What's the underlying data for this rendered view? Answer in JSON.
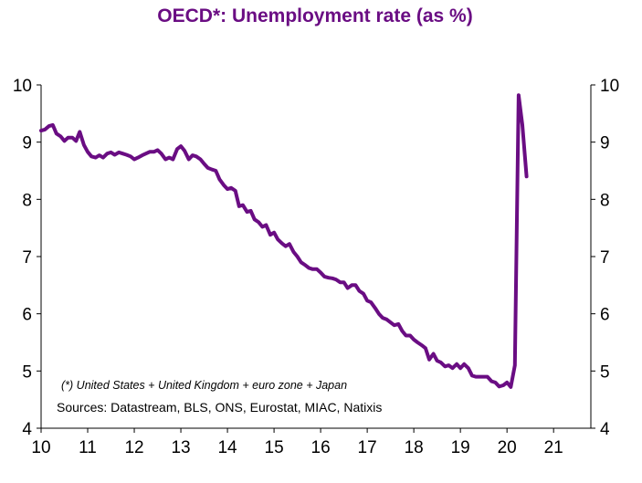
{
  "chart_data": {
    "type": "line",
    "title": "OECD*:  Unemployment rate (as %)",
    "xlabel": "",
    "ylabel": "",
    "xlim": [
      10,
      21.8
    ],
    "ylim": [
      4,
      10
    ],
    "x_ticks": [
      "10",
      "11",
      "12",
      "13",
      "14",
      "15",
      "16",
      "17",
      "18",
      "19",
      "20",
      "21"
    ],
    "y_ticks": [
      "4",
      "5",
      "6",
      "7",
      "8",
      "9",
      "10"
    ],
    "y_ticks_right": [
      "4",
      "5",
      "6",
      "7",
      "8",
      "9",
      "10"
    ],
    "grid": false,
    "legend": "none",
    "series_color": "#6a0d83",
    "series": [
      {
        "x": [
          10.0,
          10.08,
          10.17,
          10.25,
          10.33,
          10.42,
          10.5,
          10.58,
          10.67,
          10.75,
          10.83,
          10.92,
          11.0,
          11.08,
          11.17,
          11.25,
          11.33,
          11.42,
          11.5,
          11.58,
          11.67,
          11.75,
          11.83,
          11.92,
          12.0,
          12.08,
          12.17,
          12.25,
          12.33,
          12.42,
          12.5,
          12.58,
          12.67,
          12.75,
          12.83,
          12.92,
          13.0,
          13.08,
          13.17,
          13.25,
          13.33,
          13.42,
          13.5,
          13.58,
          13.67,
          13.75,
          13.83,
          13.92,
          14.0,
          14.08,
          14.17,
          14.25,
          14.33,
          14.42,
          14.5,
          14.58,
          14.67,
          14.75,
          14.83,
          14.92,
          15.0,
          15.08,
          15.17,
          15.25,
          15.33,
          15.42,
          15.5,
          15.58,
          15.67,
          15.75,
          15.83,
          15.92,
          16.0,
          16.08,
          16.17,
          16.25,
          16.33,
          16.42,
          16.5,
          16.58,
          16.67,
          16.75,
          16.83,
          16.92,
          17.0,
          17.08,
          17.17,
          17.25,
          17.33,
          17.42,
          17.5,
          17.58,
          17.67,
          17.75,
          17.83,
          17.92,
          18.0,
          18.08,
          18.17,
          18.25,
          18.33,
          18.42,
          18.5,
          18.58,
          18.67,
          18.75,
          18.83,
          18.92,
          19.0,
          19.08,
          19.17,
          19.25,
          19.33,
          19.42,
          19.5,
          19.58,
          19.67,
          19.75,
          19.83,
          19.92,
          20.0,
          20.08,
          20.17,
          20.25,
          20.33,
          20.42
        ],
        "y": [
          9.2,
          9.22,
          9.28,
          9.3,
          9.15,
          9.1,
          9.02,
          9.08,
          9.08,
          9.02,
          9.18,
          8.95,
          8.83,
          8.75,
          8.73,
          8.77,
          8.73,
          8.8,
          8.82,
          8.78,
          8.82,
          8.8,
          8.78,
          8.75,
          8.7,
          8.73,
          8.77,
          8.8,
          8.83,
          8.83,
          8.86,
          8.8,
          8.7,
          8.73,
          8.7,
          8.88,
          8.93,
          8.85,
          8.7,
          8.77,
          8.75,
          8.7,
          8.62,
          8.55,
          8.52,
          8.5,
          8.35,
          8.25,
          8.18,
          8.2,
          8.15,
          7.88,
          7.9,
          7.78,
          7.8,
          7.65,
          7.6,
          7.52,
          7.55,
          7.38,
          7.42,
          7.3,
          7.23,
          7.18,
          7.22,
          7.08,
          7.0,
          6.9,
          6.85,
          6.8,
          6.78,
          6.78,
          6.72,
          6.65,
          6.63,
          6.62,
          6.6,
          6.55,
          6.55,
          6.45,
          6.5,
          6.5,
          6.4,
          6.35,
          6.23,
          6.2,
          6.1,
          6.0,
          5.93,
          5.9,
          5.85,
          5.8,
          5.82,
          5.7,
          5.62,
          5.62,
          5.55,
          5.5,
          5.45,
          5.4,
          5.2,
          5.3,
          5.18,
          5.15,
          5.08,
          5.1,
          5.05,
          5.12,
          5.05,
          5.12,
          5.05,
          4.92,
          4.9,
          4.9,
          4.9,
          4.9,
          4.82,
          4.8,
          4.73,
          4.75,
          4.8,
          4.72,
          5.1,
          9.82,
          9.3,
          8.4
        ]
      }
    ],
    "annotations": [
      "(*) United States + United Kingdom + euro zone + Japan",
      "Sources:  Datastream,  BLS, ONS, Eurostat,  MIAC, Natixis"
    ]
  }
}
